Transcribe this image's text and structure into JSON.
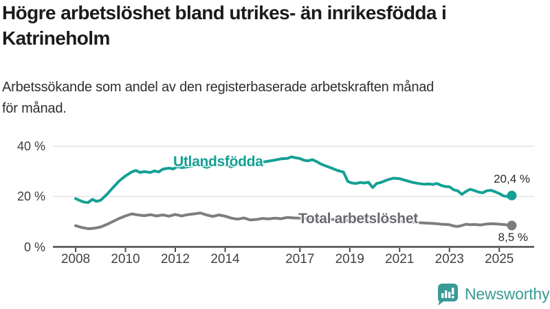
{
  "header": {
    "title_lines": [
      "Högre arbetslöshet bland utrikes- än inrikesfödda i",
      "Katrineholm"
    ],
    "subtitle_lines": [
      "Arbetssökande som andel av den registerbaserade arbetskraften månad",
      "för månad."
    ]
  },
  "chart_data": {
    "type": "line",
    "title": "Högre arbetslöshet bland utrikes- än inrikesfödda i Katrineholm",
    "subtitle": "Arbetssökande som andel av den registerbaserade arbetskraften månad för månad.",
    "ylabel": "",
    "xlabel": "",
    "unit": "%",
    "ylim": [
      0,
      40
    ],
    "xlim": [
      2007.3,
      2026.2
    ],
    "grid": "horizontal",
    "legend_position": "inline-labels",
    "y_ticks": [
      {
        "label": "0 %",
        "value": 0
      },
      {
        "label": "20 %",
        "value": 20
      },
      {
        "label": "40 %",
        "value": 40
      }
    ],
    "x_ticks": [
      2008,
      2010,
      2012,
      2014,
      2017,
      2019,
      2021,
      2023,
      2025
    ],
    "series": [
      {
        "name": "Utlandsfödda",
        "color": "#13a094",
        "end_label": "20,4 %",
        "end_value": 20.4,
        "points": [
          [
            2008.0,
            19.2
          ],
          [
            2008.17,
            18.4
          ],
          [
            2008.33,
            17.8
          ],
          [
            2008.5,
            17.6
          ],
          [
            2008.67,
            18.9
          ],
          [
            2008.83,
            18.1
          ],
          [
            2009.0,
            18.5
          ],
          [
            2009.25,
            20.8
          ],
          [
            2009.5,
            23.6
          ],
          [
            2009.75,
            26.2
          ],
          [
            2010.0,
            28.2
          ],
          [
            2010.25,
            29.8
          ],
          [
            2010.42,
            30.4
          ],
          [
            2010.58,
            29.6
          ],
          [
            2010.75,
            29.9
          ],
          [
            2011.0,
            29.6
          ],
          [
            2011.17,
            30.2
          ],
          [
            2011.33,
            29.8
          ],
          [
            2011.5,
            30.9
          ],
          [
            2011.75,
            31.3
          ],
          [
            2011.92,
            31.0
          ],
          [
            2012.08,
            31.9
          ],
          [
            2012.25,
            31.5
          ],
          [
            2012.5,
            31.8
          ],
          [
            2012.75,
            32.3
          ],
          [
            2013.0,
            32.5
          ],
          [
            2013.25,
            31.6
          ],
          [
            2013.5,
            32.4
          ],
          [
            2013.75,
            32.9
          ],
          [
            2014.0,
            32.6
          ],
          [
            2014.25,
            31.8
          ],
          [
            2014.5,
            32.7
          ],
          [
            2014.75,
            33.1
          ],
          [
            2015.0,
            33.2
          ],
          [
            2015.25,
            33.5
          ],
          [
            2015.5,
            33.7
          ],
          [
            2015.75,
            34.1
          ],
          [
            2016.0,
            34.5
          ],
          [
            2016.25,
            35.0
          ],
          [
            2016.5,
            35.2
          ],
          [
            2016.67,
            35.8
          ],
          [
            2016.83,
            35.4
          ],
          [
            2017.0,
            35.1
          ],
          [
            2017.17,
            34.4
          ],
          [
            2017.33,
            34.2
          ],
          [
            2017.5,
            34.7
          ],
          [
            2017.67,
            33.9
          ],
          [
            2017.83,
            33.0
          ],
          [
            2018.0,
            32.3
          ],
          [
            2018.25,
            31.4
          ],
          [
            2018.5,
            30.4
          ],
          [
            2018.75,
            29.7
          ],
          [
            2018.92,
            26.0
          ],
          [
            2019.08,
            25.4
          ],
          [
            2019.25,
            25.2
          ],
          [
            2019.42,
            25.6
          ],
          [
            2019.58,
            25.4
          ],
          [
            2019.75,
            25.7
          ],
          [
            2019.92,
            23.6
          ],
          [
            2020.08,
            25.2
          ],
          [
            2020.25,
            25.6
          ],
          [
            2020.5,
            26.6
          ],
          [
            2020.75,
            27.3
          ],
          [
            2021.0,
            27.1
          ],
          [
            2021.25,
            26.4
          ],
          [
            2021.5,
            25.7
          ],
          [
            2021.75,
            25.2
          ],
          [
            2022.0,
            24.9
          ],
          [
            2022.17,
            25.0
          ],
          [
            2022.33,
            24.8
          ],
          [
            2022.5,
            25.2
          ],
          [
            2022.67,
            24.4
          ],
          [
            2022.83,
            24.0
          ],
          [
            2023.0,
            23.9
          ],
          [
            2023.17,
            22.7
          ],
          [
            2023.33,
            22.3
          ],
          [
            2023.5,
            20.9
          ],
          [
            2023.67,
            22.1
          ],
          [
            2023.83,
            22.9
          ],
          [
            2024.0,
            22.4
          ],
          [
            2024.17,
            21.8
          ],
          [
            2024.33,
            21.5
          ],
          [
            2024.5,
            22.3
          ],
          [
            2024.67,
            22.5
          ],
          [
            2024.83,
            21.9
          ],
          [
            2025.0,
            21.2
          ],
          [
            2025.17,
            20.3
          ],
          [
            2025.33,
            20.0
          ],
          [
            2025.5,
            20.4
          ]
        ]
      },
      {
        "name": "Total arbetslöshet",
        "color": "#7d7d81",
        "end_label": "8,5 %",
        "end_value": 8.5,
        "points": [
          [
            2008.0,
            8.4
          ],
          [
            2008.25,
            7.7
          ],
          [
            2008.5,
            7.2
          ],
          [
            2008.75,
            7.4
          ],
          [
            2009.0,
            7.9
          ],
          [
            2009.25,
            8.9
          ],
          [
            2009.5,
            10.1
          ],
          [
            2009.75,
            11.3
          ],
          [
            2010.0,
            12.3
          ],
          [
            2010.25,
            13.1
          ],
          [
            2010.5,
            12.7
          ],
          [
            2010.75,
            12.4
          ],
          [
            2011.0,
            12.8
          ],
          [
            2011.25,
            12.3
          ],
          [
            2011.5,
            12.7
          ],
          [
            2011.75,
            12.2
          ],
          [
            2012.0,
            12.9
          ],
          [
            2012.25,
            12.3
          ],
          [
            2012.5,
            12.8
          ],
          [
            2012.75,
            13.1
          ],
          [
            2013.0,
            13.5
          ],
          [
            2013.25,
            12.7
          ],
          [
            2013.5,
            12.1
          ],
          [
            2013.75,
            12.7
          ],
          [
            2014.0,
            12.2
          ],
          [
            2014.25,
            11.4
          ],
          [
            2014.5,
            11.0
          ],
          [
            2014.75,
            11.5
          ],
          [
            2015.0,
            10.7
          ],
          [
            2015.25,
            10.9
          ],
          [
            2015.5,
            11.3
          ],
          [
            2015.75,
            11.1
          ],
          [
            2016.0,
            11.4
          ],
          [
            2016.25,
            11.2
          ],
          [
            2016.5,
            11.7
          ],
          [
            2016.75,
            11.5
          ],
          [
            2017.0,
            11.4
          ],
          [
            2017.5,
            11.2
          ],
          [
            2018.0,
            11.0
          ],
          [
            2018.5,
            10.8
          ],
          [
            2019.0,
            10.4
          ],
          [
            2019.5,
            10.0
          ],
          [
            2020.0,
            10.2
          ],
          [
            2020.5,
            10.6
          ],
          [
            2021.0,
            10.2
          ],
          [
            2021.5,
            9.8
          ],
          [
            2022.0,
            9.5
          ],
          [
            2022.33,
            9.3
          ],
          [
            2022.5,
            9.2
          ],
          [
            2022.67,
            9.0
          ],
          [
            2022.83,
            8.9
          ],
          [
            2023.0,
            8.8
          ],
          [
            2023.17,
            8.3
          ],
          [
            2023.33,
            8.1
          ],
          [
            2023.5,
            8.5
          ],
          [
            2023.67,
            9.0
          ],
          [
            2023.83,
            8.8
          ],
          [
            2024.0,
            8.9
          ],
          [
            2024.25,
            8.7
          ],
          [
            2024.5,
            9.1
          ],
          [
            2024.75,
            9.2
          ],
          [
            2025.0,
            9.0
          ],
          [
            2025.25,
            8.8
          ],
          [
            2025.5,
            8.5
          ]
        ]
      }
    ]
  },
  "colors": {
    "accent_teal": "#13a094",
    "series_gray": "#7d7d81",
    "gridline": "#e3e3e3",
    "axis": "#4a4a4a",
    "brand_teal": "#3a9a96"
  },
  "footer": {
    "brand": "Newsworthy"
  }
}
